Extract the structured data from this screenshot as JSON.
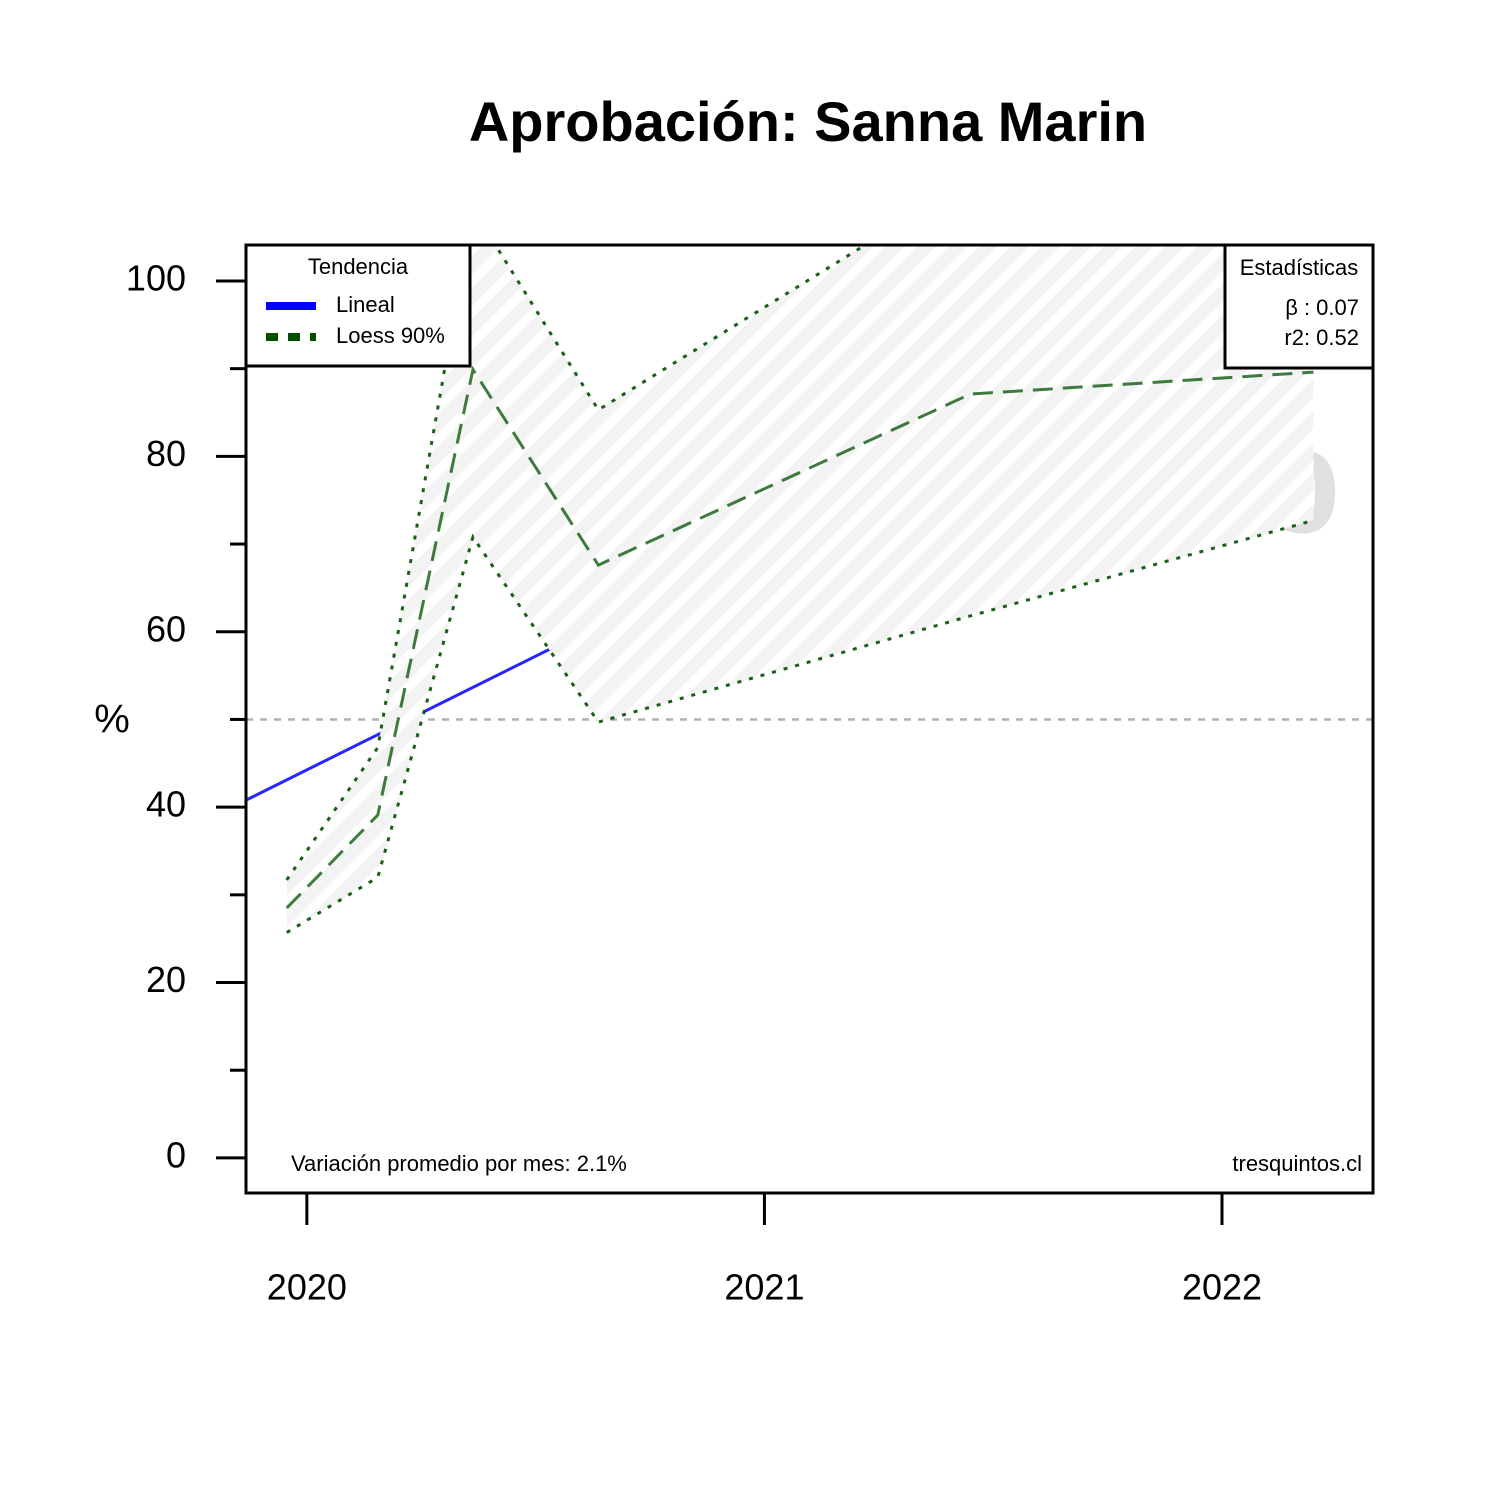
{
  "chart_data": {
    "type": "line",
    "title": "Aprobación: Sanna Marin",
    "y_label": "%",
    "watermark": "102.1%",
    "xlim": [
      2019.867,
      2022.33
    ],
    "xticks": [
      2020,
      2021,
      2022
    ],
    "ylim": [
      -4,
      104.1
    ],
    "yticks": [
      0,
      20,
      40,
      60,
      80,
      100
    ],
    "yminor_ticks": [
      10,
      30,
      50,
      70,
      90
    ],
    "hline": 50,
    "legend": {
      "title": "Tendencia",
      "position": "top-left"
    },
    "series": [
      {
        "name": "Lineal",
        "color": "#0000ff",
        "x": [
          2019.867,
          2022.2
        ],
        "values": [
          40.8,
          101.3
        ]
      },
      {
        "name": "Loess 90%",
        "color": "#005000",
        "x": [
          2019.956,
          2020.155,
          2020.363,
          2020.637,
          2021.45,
          2022.2
        ],
        "values": [
          28.5,
          39.1,
          89.9,
          67.6,
          87.1,
          89.6
        ],
        "upper": [
          31.7,
          46.8,
          108.2,
          85.3,
          111.5,
          115
        ],
        "lower": [
          25.7,
          32.0,
          70.8,
          49.7,
          61.8,
          72.7
        ]
      }
    ],
    "stats": {
      "title": "Estadísticas",
      "lines": [
        "β : 0.07",
        "r2: 0.52"
      ]
    },
    "footer_left": "Variación promedio por mes: 2.1%",
    "footer_right": "tresquintos.cl"
  }
}
